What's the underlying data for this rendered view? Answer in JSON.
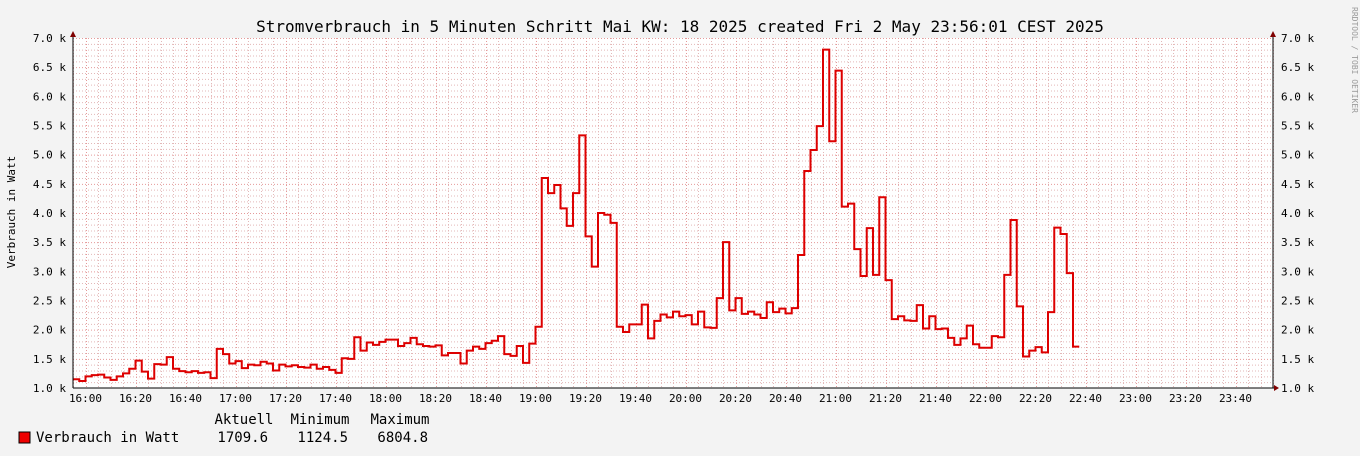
{
  "chart_data": {
    "type": "line",
    "title": "Stromverbrauch in 5 Minuten Schritt Mai KW: 18 2025 created Fri  2 May 23:56:01 CEST 2025",
    "ylabel": "Verbrauch in Watt",
    "watermark": "RRDTOOL / TOBI OETIKER",
    "ylim": [
      1000,
      7000
    ],
    "xlim": [
      "15:55",
      "23:55"
    ],
    "y_tick_labels": [
      "1.0 k",
      "1.5 k",
      "2.0 k",
      "2.5 k",
      "3.0 k",
      "3.5 k",
      "4.0 k",
      "4.5 k",
      "5.0 k",
      "5.5 k",
      "6.0 k",
      "6.5 k",
      "7.0 k"
    ],
    "y_tick_values": [
      1000,
      1500,
      2000,
      2500,
      3000,
      3500,
      4000,
      4500,
      5000,
      5500,
      6000,
      6500,
      7000
    ],
    "x_tick_labels": [
      "16:00",
      "16:20",
      "16:40",
      "17:00",
      "17:20",
      "17:40",
      "18:00",
      "18:20",
      "18:40",
      "19:00",
      "19:20",
      "19:40",
      "20:00",
      "20:20",
      "20:40",
      "21:00",
      "21:20",
      "21:40",
      "22:00",
      "22:20",
      "22:40",
      "23:00",
      "23:20",
      "23:40"
    ],
    "grid": true,
    "line_color": "#dd0000",
    "series": [
      {
        "name": "Verbrauch in Watt",
        "step_start": "15:55",
        "step_minutes": 2.5,
        "values": [
          1150,
          1120,
          1200,
          1220,
          1230,
          1180,
          1140,
          1200,
          1250,
          1330,
          1470,
          1280,
          1160,
          1410,
          1400,
          1530,
          1330,
          1290,
          1270,
          1290,
          1260,
          1270,
          1170,
          1670,
          1580,
          1420,
          1460,
          1340,
          1400,
          1390,
          1450,
          1420,
          1300,
          1400,
          1370,
          1390,
          1360,
          1350,
          1400,
          1330,
          1360,
          1310,
          1260,
          1510,
          1500,
          1870,
          1640,
          1780,
          1740,
          1790,
          1830,
          1830,
          1720,
          1770,
          1860,
          1750,
          1720,
          1710,
          1730,
          1560,
          1600,
          1600,
          1420,
          1640,
          1710,
          1670,
          1770,
          1810,
          1890,
          1580,
          1550,
          1720,
          1430,
          1760,
          2050,
          4600,
          4340,
          4480,
          4080,
          3780,
          4340,
          5330,
          3600,
          3080,
          4000,
          3970,
          3830,
          2050,
          1960,
          2090,
          2090,
          2430,
          1850,
          2150,
          2260,
          2210,
          2310,
          2230,
          2250,
          2090,
          2310,
          2040,
          2030,
          2540,
          3500,
          2330,
          2540,
          2270,
          2310,
          2260,
          2200,
          2470,
          2300,
          2360,
          2280,
          2370,
          3280,
          4720,
          5080,
          5490,
          6800,
          5230,
          6440,
          4110,
          4160,
          3380,
          2920,
          3740,
          2940,
          4270,
          2850,
          2180,
          2230,
          2160,
          2150,
          2420,
          2020,
          2230,
          2010,
          2020,
          1860,
          1740,
          1850,
          2070,
          1750,
          1690,
          1690,
          1890,
          1870,
          2940,
          3880,
          2400,
          1540,
          1640,
          1700,
          1610,
          2300,
          3750,
          3640,
          2970,
          1710
        ]
      }
    ],
    "legend": {
      "headers": [
        "Aktuell",
        "Minimum",
        "Maximum"
      ],
      "swatch_color": "#ee0000",
      "entries": [
        {
          "name": "Verbrauch in Watt",
          "current": "1709.6",
          "minimum": "1124.5",
          "maximum": "6804.8"
        }
      ]
    }
  }
}
